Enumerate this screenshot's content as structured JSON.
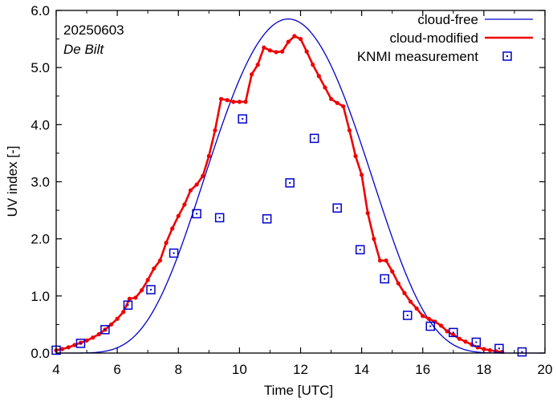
{
  "chart_data": {
    "type": "line",
    "date_label": "20250603",
    "station_label": "De Bilt",
    "xlabel": "Time  [UTC]",
    "ylabel": "UV index  [-]",
    "xlim": [
      4,
      20
    ],
    "ylim": [
      0,
      6
    ],
    "x_ticks": [
      4,
      6,
      8,
      10,
      12,
      14,
      16,
      18,
      20
    ],
    "x_tick_labels": [
      "4",
      "6",
      "8",
      "10",
      "12",
      "14",
      "16",
      "18",
      "20"
    ],
    "y_ticks": [
      0,
      1,
      2,
      3,
      4,
      5,
      6
    ],
    "y_tick_labels": [
      "0.0",
      "1.0",
      "2.0",
      "3.0",
      "4.0",
      "5.0",
      "6.0"
    ],
    "legend_position": "top-right",
    "series": [
      {
        "name": "cloud-free",
        "style": "line",
        "color": "#0000cc",
        "peak_time": 11.6,
        "peak_value": 5.85,
        "width": 2.6,
        "start": 4.0,
        "end": 20.0
      },
      {
        "name": "cloud-modified",
        "style": "line-with-dots",
        "color": "#ee0000",
        "x": [
          4.0,
          4.2,
          4.4,
          4.6,
          4.8,
          5.0,
          5.2,
          5.4,
          5.6,
          5.8,
          6.0,
          6.2,
          6.4,
          6.6,
          6.8,
          7.0,
          7.2,
          7.4,
          7.6,
          7.8,
          8.0,
          8.2,
          8.4,
          8.6,
          8.8,
          9.0,
          9.2,
          9.4,
          9.6,
          9.8,
          10.0,
          10.2,
          10.4,
          10.6,
          10.8,
          11.0,
          11.2,
          11.4,
          11.6,
          11.8,
          12.0,
          12.2,
          12.4,
          12.6,
          12.8,
          13.0,
          13.2,
          13.4,
          13.6,
          13.8,
          14.0,
          14.2,
          14.4,
          14.6,
          14.8,
          15.0,
          15.2,
          15.4,
          15.6,
          15.8,
          16.0,
          16.2,
          16.4,
          16.6,
          16.8,
          17.0,
          17.2,
          17.4,
          17.6,
          17.8,
          18.0,
          18.2,
          18.4,
          18.6
        ],
        "y": [
          0.05,
          0.07,
          0.1,
          0.14,
          0.18,
          0.22,
          0.27,
          0.33,
          0.41,
          0.5,
          0.6,
          0.72,
          0.95,
          0.97,
          1.1,
          1.28,
          1.48,
          1.62,
          1.93,
          2.18,
          2.4,
          2.6,
          2.85,
          2.95,
          3.1,
          3.45,
          3.9,
          4.45,
          4.43,
          4.4,
          4.4,
          4.4,
          4.88,
          5.05,
          5.35,
          5.3,
          5.27,
          5.28,
          5.45,
          5.55,
          5.5,
          5.28,
          5.05,
          4.85,
          4.65,
          4.45,
          4.38,
          4.32,
          3.9,
          3.45,
          3.12,
          2.45,
          2.0,
          1.62,
          1.62,
          1.43,
          1.22,
          1.05,
          0.9,
          0.78,
          0.65,
          0.6,
          0.55,
          0.48,
          0.38,
          0.32,
          0.25,
          0.2,
          0.15,
          0.1,
          0.07,
          0.05,
          0.03,
          0.02
        ]
      },
      {
        "name": "KNMI measurement",
        "style": "open-square-with-dot",
        "color": "#0000cc",
        "x": [
          4.0,
          4.8,
          5.6,
          6.35,
          7.1,
          7.85,
          8.6,
          9.35,
          10.1,
          10.9,
          11.65,
          12.45,
          13.2,
          13.95,
          14.75,
          15.5,
          16.25,
          17.0,
          17.75,
          18.5,
          19.25
        ],
        "y": [
          0.05,
          0.17,
          0.41,
          0.84,
          1.11,
          1.75,
          2.44,
          2.37,
          4.1,
          2.35,
          2.98,
          3.76,
          2.54,
          1.81,
          1.3,
          0.66,
          0.47,
          0.36,
          0.19,
          0.08,
          0.02
        ]
      }
    ]
  }
}
